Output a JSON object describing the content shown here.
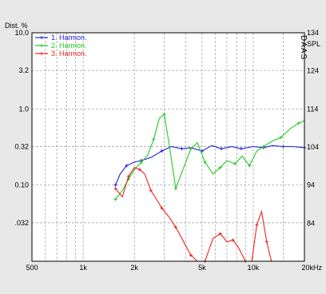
{
  "chart_data": {
    "type": "line",
    "y_axis_label": "Dist. %",
    "y2_axis_label": "SPL",
    "x_unit_label": "20kHz",
    "watermark": "DAAS",
    "x_scale": "log",
    "xlim": [
      500,
      20000
    ],
    "y_scale": "log",
    "ylim": [
      0.01,
      10.0
    ],
    "y2lim": [
      74,
      134
    ],
    "grid": true,
    "legend_position": "top-left",
    "x_ticks": [
      {
        "value": 500,
        "label": "500"
      },
      {
        "value": 1000,
        "label": "1k"
      },
      {
        "value": 2000,
        "label": "2k"
      },
      {
        "value": 5000,
        "label": "5k"
      },
      {
        "value": 10000,
        "label": "10k"
      },
      {
        "value": 20000,
        "label": "20kHz"
      }
    ],
    "x_minor": [
      600,
      700,
      800,
      900,
      3000,
      4000,
      6000,
      7000,
      8000,
      9000,
      15000
    ],
    "y_ticks": [
      {
        "value": 10.0,
        "label": "10.0"
      },
      {
        "value": 3.2,
        "label": "3.2"
      },
      {
        "value": 1.0,
        "label": "1.0"
      },
      {
        "value": 0.32,
        "label": "0.32"
      },
      {
        "value": 0.1,
        "label": "0.10"
      },
      {
        "value": 0.032,
        "label": ".032"
      }
    ],
    "y2_ticks": [
      {
        "value": 134,
        "label": "134"
      },
      {
        "value": 124,
        "label": "124"
      },
      {
        "value": 114,
        "label": "114"
      },
      {
        "value": 104,
        "label": "104"
      },
      {
        "value": 94,
        "label": "94"
      },
      {
        "value": 84,
        "label": "84"
      }
    ],
    "series": [
      {
        "name": "1. Harmon.",
        "color": "#2222dd",
        "x": [
          1550,
          1650,
          1800,
          2000,
          2200,
          2500,
          2900,
          3300,
          3800,
          4300,
          5000,
          5700,
          6500,
          7500,
          8500,
          10000,
          11500,
          13000,
          15000,
          17000,
          20000
        ],
        "y": [
          0.1,
          0.14,
          0.18,
          0.2,
          0.21,
          0.23,
          0.28,
          0.32,
          0.3,
          0.31,
          0.28,
          0.33,
          0.3,
          0.32,
          0.3,
          0.32,
          0.31,
          0.33,
          0.32,
          0.32,
          0.31
        ]
      },
      {
        "name": "2. Harmon.",
        "color": "#22cc22",
        "x": [
          1550,
          1700,
          1850,
          2000,
          2200,
          2400,
          2600,
          2800,
          3000,
          3200,
          3500,
          3900,
          4300,
          4700,
          5200,
          5800,
          6400,
          7000,
          7800,
          8600,
          9500,
          10500,
          11500,
          13000,
          14500,
          16500,
          18500,
          20000
        ],
        "y": [
          0.065,
          0.085,
          0.12,
          0.16,
          0.2,
          0.25,
          0.4,
          0.75,
          0.85,
          0.35,
          0.09,
          0.17,
          0.3,
          0.36,
          0.2,
          0.14,
          0.17,
          0.21,
          0.19,
          0.24,
          0.18,
          0.28,
          0.32,
          0.38,
          0.42,
          0.55,
          0.65,
          0.7
        ]
      },
      {
        "name": "3. Harmon.",
        "color": "#ee2222",
        "x": [
          1550,
          1700,
          1850,
          2000,
          2150,
          2300,
          2500,
          2700,
          2900,
          3200,
          3500,
          3900,
          4300,
          4700,
          5200,
          5800,
          6400,
          7000,
          7600,
          8200,
          9000,
          9800,
          10500,
          11200,
          12000,
          12800
        ],
        "y": [
          0.09,
          0.07,
          0.13,
          0.17,
          0.16,
          0.14,
          0.085,
          0.065,
          0.05,
          0.038,
          0.028,
          0.018,
          0.012,
          0.008,
          0.007,
          0.02,
          0.023,
          0.018,
          0.019,
          0.015,
          0.006,
          0.01,
          0.03,
          0.045,
          0.018,
          0.008
        ]
      }
    ]
  }
}
